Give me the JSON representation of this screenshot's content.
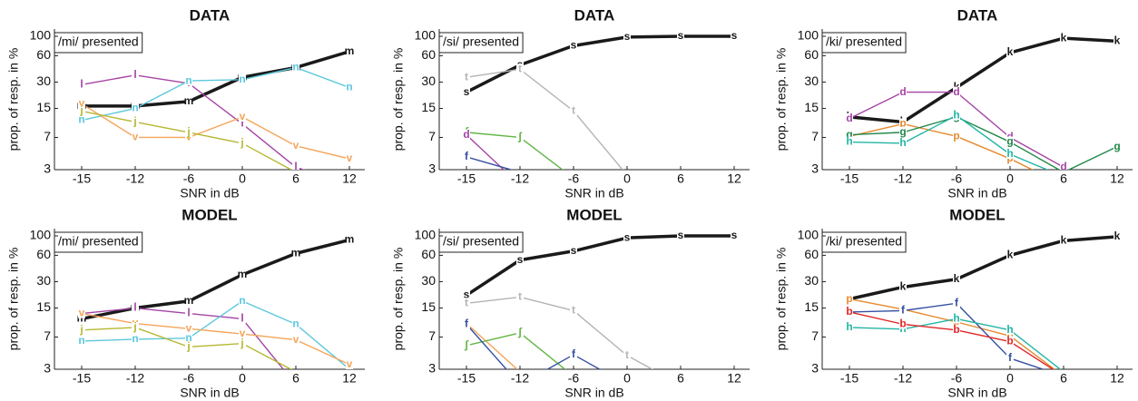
{
  "chart_data": [
    {
      "type": "line",
      "title": "DATA",
      "annotation": "/mi/ presented",
      "x_label": "SNR in dB",
      "y_label": "prop. of resp. in %",
      "categories": [
        "-15",
        "-12",
        "-6",
        "0",
        "6",
        "12"
      ],
      "ylim": [
        3,
        100
      ],
      "yticks": [
        3,
        7,
        15,
        30,
        60,
        100
      ],
      "log_y": true,
      "series": [
        {
          "name": "m",
          "color": "#1a1a1a",
          "values": [
            16,
            16,
            18,
            34,
            44,
            67
          ]
        },
        {
          "name": "l",
          "color": "#a545a5",
          "values": [
            28,
            36,
            29,
            10,
            3.2,
            2
          ]
        },
        {
          "name": "n",
          "color": "#5cc8dc",
          "values": [
            11,
            15,
            31,
            32,
            44,
            26
          ]
        },
        {
          "name": "v",
          "color": "#f5a55a",
          "values": [
            17,
            7,
            7,
            12,
            5.6,
            4
          ]
        },
        {
          "name": "j",
          "color": "#b5b832",
          "values": [
            14,
            10.5,
            8,
            6,
            2.8,
            null
          ]
        }
      ]
    },
    {
      "type": "line",
      "title": "DATA",
      "annotation": "/si/ presented",
      "x_label": "SNR in dB",
      "y_label": "prop. of resp. in %",
      "categories": [
        "-15",
        "-12",
        "-6",
        "0",
        "6",
        "12"
      ],
      "ylim": [
        3,
        100
      ],
      "yticks": [
        3,
        7,
        15,
        30,
        60,
        100
      ],
      "log_y": true,
      "series": [
        {
          "name": "s",
          "color": "#1a1a1a",
          "values": [
            23,
            47,
            78,
            98,
            100,
            100
          ]
        },
        {
          "name": "t",
          "color": "#b4b4b4",
          "values": [
            34,
            42,
            14,
            2.6,
            null,
            null
          ]
        },
        {
          "name": "ʃ",
          "color": "#62b545",
          "values": [
            8,
            7,
            2.4,
            null,
            null,
            null
          ]
        },
        {
          "name": "d",
          "color": "#a545a5",
          "values": [
            7.5,
            2,
            null,
            null,
            null,
            null
          ]
        },
        {
          "name": "f",
          "color": "#3450a0",
          "values": [
            4.2,
            2.8,
            null,
            null,
            null,
            null
          ]
        }
      ]
    },
    {
      "type": "line",
      "title": "DATA",
      "annotation": "/ki/ presented",
      "x_label": "SNR in dB",
      "y_label": "prop. of resp. in %",
      "categories": [
        "-15",
        "-12",
        "-6",
        "0",
        "6",
        "12"
      ],
      "ylim": [
        3,
        100
      ],
      "yticks": [
        3,
        7,
        15,
        30,
        60,
        100
      ],
      "log_y": true,
      "series": [
        {
          "name": "k",
          "color": "#1a1a1a",
          "values": [
            12,
            10.5,
            26,
            65,
            95,
            88
          ]
        },
        {
          "name": "d",
          "color": "#a545a5",
          "values": [
            11.5,
            23,
            23,
            7,
            3.2,
            null
          ]
        },
        {
          "name": "p",
          "color": "#e58a30",
          "values": [
            7.2,
            10,
            7.2,
            4,
            2,
            null
          ]
        },
        {
          "name": "g",
          "color": "#22884a",
          "values": [
            7.5,
            8,
            12,
            6.2,
            2.8,
            5.5
          ]
        },
        {
          "name": "h",
          "color": "#22b5a5",
          "values": [
            6.2,
            6,
            12.5,
            4.5,
            2.5,
            null
          ]
        }
      ]
    },
    {
      "type": "line",
      "title": "MODEL",
      "annotation": "/mi/ presented",
      "x_label": "SNR in dB",
      "y_label": "prop. of resp. in %",
      "categories": [
        "-15",
        "-12",
        "-6",
        "0",
        "6",
        "12"
      ],
      "ylim": [
        3,
        100
      ],
      "yticks": [
        3,
        7,
        15,
        30,
        60,
        100
      ],
      "log_y": true,
      "series": [
        {
          "name": "m",
          "color": "#1a1a1a",
          "values": [
            11.3,
            15,
            18,
            36,
            63,
            90
          ]
        },
        {
          "name": "l",
          "color": "#a545a5",
          "values": [
            13,
            15,
            13,
            11.3,
            2,
            null
          ]
        },
        {
          "name": "n",
          "color": "#5cc8dc",
          "values": [
            6.3,
            6.6,
            6.8,
            18,
            9.8,
            3
          ]
        },
        {
          "name": "v",
          "color": "#f5a55a",
          "values": [
            13,
            10,
            8.7,
            7.6,
            6.5,
            3.4
          ]
        },
        {
          "name": "j",
          "color": "#b5b832",
          "values": [
            8.4,
            9,
            5.4,
            5.9,
            2.8,
            null
          ]
        }
      ]
    },
    {
      "type": "line",
      "title": "MODEL",
      "annotation": "/si/ presented",
      "x_label": "SNR in dB",
      "y_label": "prop. of resp. in %",
      "categories": [
        "-15",
        "-12",
        "-6",
        "0",
        "6",
        "12"
      ],
      "ylim": [
        3,
        100
      ],
      "yticks": [
        3,
        7,
        15,
        30,
        60,
        100
      ],
      "log_y": true,
      "series": [
        {
          "name": "s",
          "color": "#1a1a1a",
          "values": [
            21,
            53,
            67,
            95,
            100,
            100
          ]
        },
        {
          "name": "t",
          "color": "#b4b4b4",
          "values": [
            17,
            20,
            14,
            4.3,
            2,
            null
          ]
        },
        {
          "name": "v",
          "color": "#f5a55a",
          "values": [
            10,
            2.8,
            null,
            null,
            null,
            null
          ]
        },
        {
          "name": "ʃ",
          "color": "#62b545",
          "values": [
            5.6,
            7.8,
            2.5,
            null,
            null,
            null
          ]
        },
        {
          "name": "f",
          "color": "#3450a0",
          "values": [
            9.8,
            2,
            4.4,
            2,
            null,
            null
          ]
        }
      ]
    },
    {
      "type": "line",
      "title": "MODEL",
      "annotation": "/ki/ presented",
      "x_label": "SNR in dB",
      "y_label": "prop. of resp. in %",
      "categories": [
        "-15",
        "-12",
        "-6",
        "0",
        "6",
        "12"
      ],
      "ylim": [
        3,
        100
      ],
      "yticks": [
        3,
        7,
        15,
        30,
        60,
        100
      ],
      "log_y": true,
      "series": [
        {
          "name": "k",
          "color": "#1a1a1a",
          "values": [
            19,
            26,
            32,
            60,
            88,
            98
          ]
        },
        {
          "name": "p",
          "color": "#e58a30",
          "values": [
            19,
            14.5,
            10.4,
            7.2,
            2.5,
            null
          ]
        },
        {
          "name": "f",
          "color": "#3450a0",
          "values": [
            13.5,
            14,
            17,
            4,
            2.5,
            null
          ]
        },
        {
          "name": "h",
          "color": "#22b5a5",
          "values": [
            9,
            8.6,
            11.3,
            8.4,
            2.8,
            null
          ]
        },
        {
          "name": "b",
          "color": "#e02525",
          "values": [
            13.5,
            9.8,
            8.4,
            6.2,
            2.5,
            null
          ]
        }
      ]
    }
  ]
}
